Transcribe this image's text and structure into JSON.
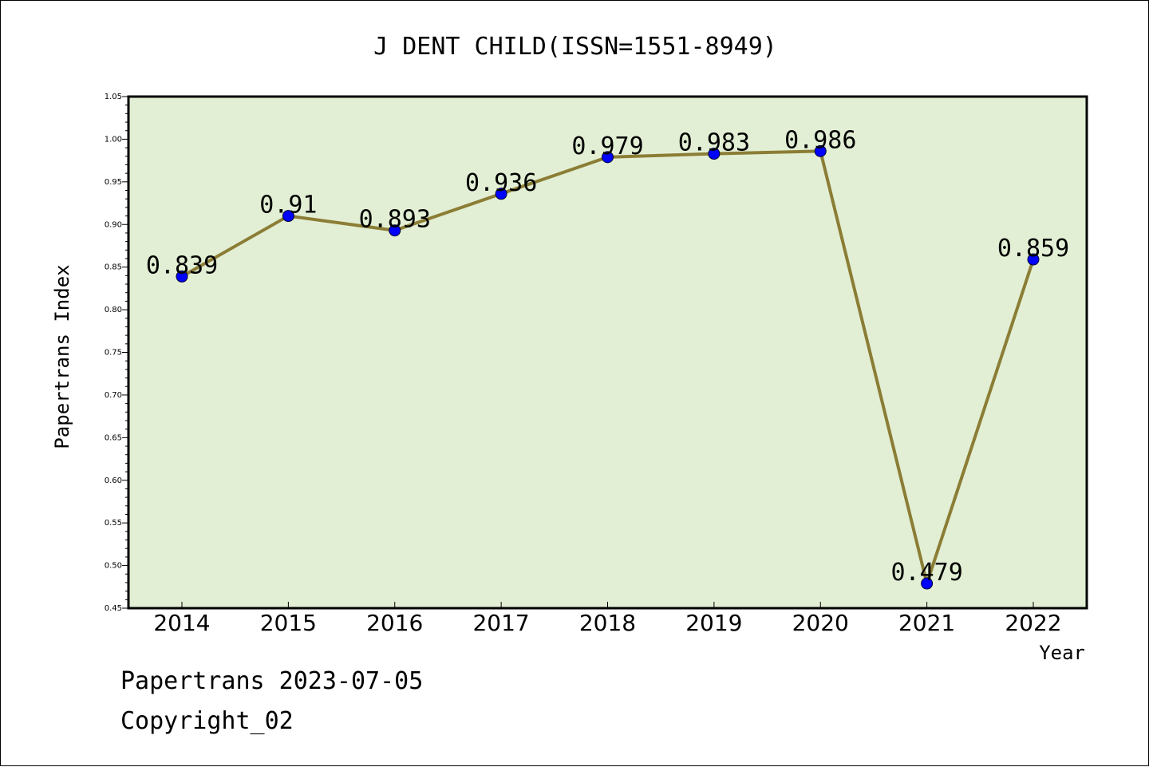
{
  "chart_data": {
    "type": "line",
    "title": "J DENT CHILD(ISSN=1551-8949)",
    "xlabel": "Year",
    "ylabel": "Papertrans Index",
    "categories": [
      "2014",
      "2015",
      "2016",
      "2017",
      "2018",
      "2019",
      "2020",
      "2021",
      "2022"
    ],
    "series": [
      {
        "values": [
          0.839,
          0.91,
          0.893,
          0.936,
          0.979,
          0.983,
          0.986,
          0.479,
          0.859
        ],
        "labels": [
          "0.839",
          "0.91",
          "0.893",
          "0.936",
          "0.979",
          "0.983",
          "0.986",
          "0.479",
          "0.859"
        ]
      }
    ],
    "ylim": [
      0.45,
      1.05
    ],
    "yticks": [
      "0.45",
      "0.50",
      "0.55",
      "0.60",
      "0.65",
      "0.70",
      "0.75",
      "0.80",
      "0.85",
      "0.90",
      "0.95",
      "1.00",
      "1.05"
    ],
    "grid": false,
    "legend": "none"
  },
  "footer": {
    "line1": "Papertrans 2023-07-05",
    "line2": "Copyright_02"
  },
  "colors": {
    "plot_background": "#e2efd4",
    "line": "#8b7d35",
    "marker": "#0000ff"
  }
}
